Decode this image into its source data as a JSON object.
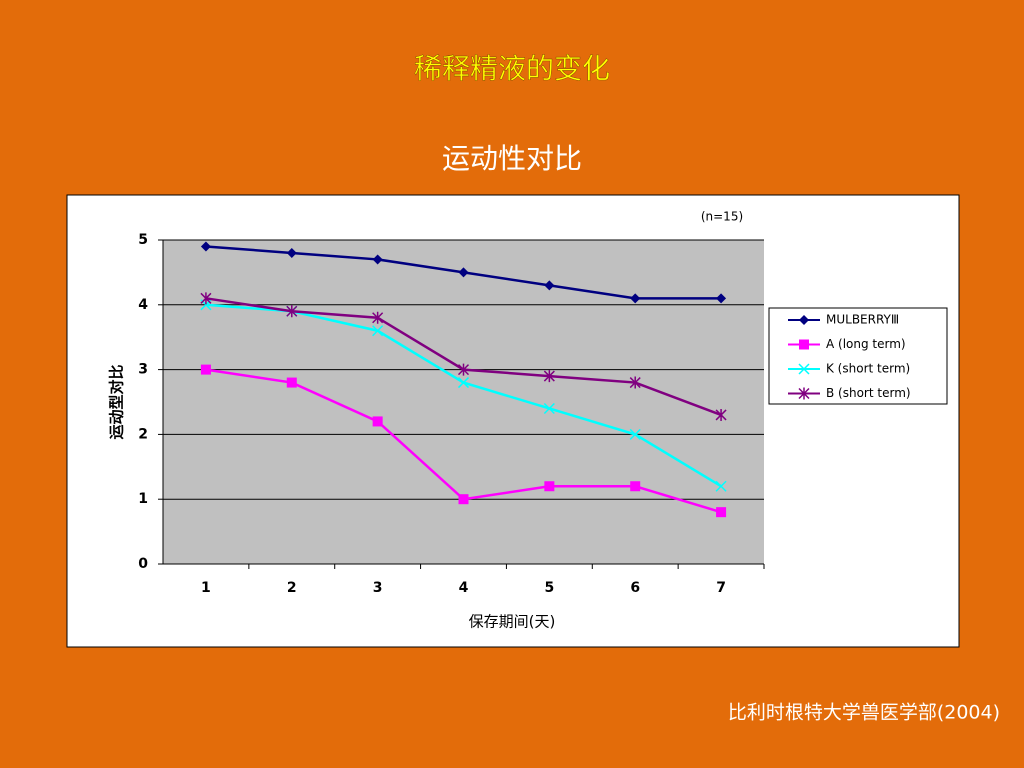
{
  "chart_data": {
    "type": "line",
    "title": "稀释精液的变化",
    "subtitle": "运动性对比",
    "note": "(n=15)",
    "source": "比利时根特大学兽医学部(2004)",
    "x_label": "保存期间(天)",
    "y_label": "运动型对比",
    "categories": [
      "1",
      "2",
      "3",
      "4",
      "5",
      "6",
      "7"
    ],
    "series": [
      {
        "name": "MULBERRYⅢ",
        "color": "#000080",
        "marker": "diamond",
        "values": [
          4.9,
          4.8,
          4.7,
          4.5,
          4.3,
          4.1,
          4.1
        ]
      },
      {
        "name": "A (long term)",
        "color": "#ff00ff",
        "marker": "square",
        "values": [
          3.0,
          2.8,
          2.2,
          1.0,
          1.2,
          1.2,
          0.8
        ]
      },
      {
        "name": "K (short term)",
        "color": "#00ffff",
        "marker": "x",
        "values": [
          4.0,
          3.9,
          3.6,
          2.8,
          2.4,
          2.0,
          1.2
        ]
      },
      {
        "name": "B (short term)",
        "color": "#800080",
        "marker": "star",
        "values": [
          4.1,
          3.9,
          3.8,
          3.0,
          2.9,
          2.8,
          2.3
        ]
      }
    ],
    "ylim": [
      0,
      5
    ],
    "yticks": [
      0,
      1,
      2,
      3,
      4,
      5
    ],
    "grid": true,
    "legend": "right"
  }
}
